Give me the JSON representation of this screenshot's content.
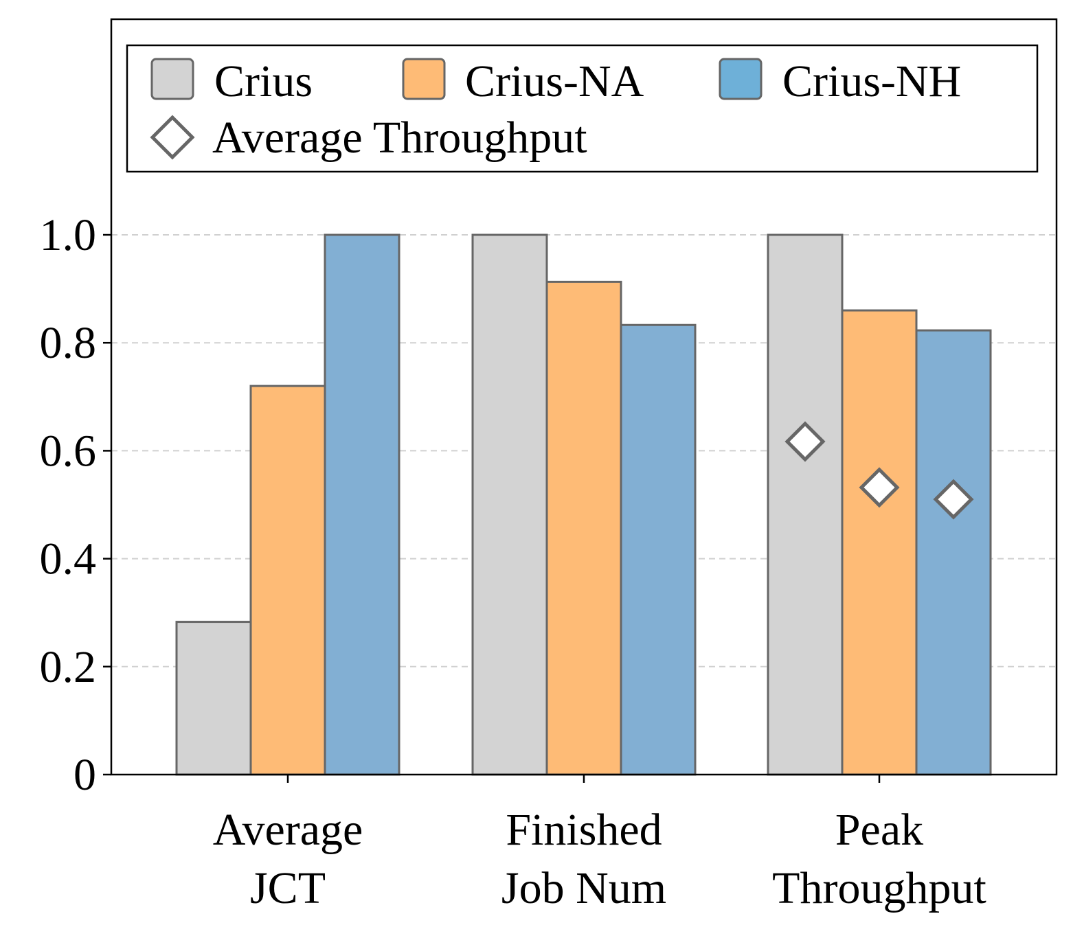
{
  "chart_data": {
    "type": "bar",
    "title": "",
    "xlabel": "",
    "ylabel": "",
    "ylim": [
      0,
      1.4
    ],
    "yticks": [
      0,
      0.2,
      0.4,
      0.6,
      0.8,
      1.0
    ],
    "ytick_labels": [
      "0",
      "0.2",
      "0.4",
      "0.6",
      "0.8",
      "1.0"
    ],
    "grid": "y dashed",
    "legend_position": "top",
    "categories": [
      [
        "Average",
        "JCT"
      ],
      [
        "Finished",
        "Job Num"
      ],
      [
        "Peak",
        "Throughput"
      ]
    ],
    "series": [
      {
        "name": "Crius",
        "color": "#d3d3d3",
        "values": [
          0.283,
          1.0,
          1.0
        ]
      },
      {
        "name": "Crius-NA",
        "color": "#febb76",
        "values": [
          0.72,
          0.913,
          0.86
        ]
      },
      {
        "name": "Crius-NH",
        "color": "#82afd3",
        "values": [
          1.0,
          0.833,
          0.823
        ]
      }
    ],
    "markers": {
      "name": "Average Throughput",
      "shape": "diamond",
      "category": "Peak Throughput",
      "values": [
        0.617,
        0.532,
        0.51
      ]
    },
    "legend_swatch_colors": [
      "#d3d3d3",
      "#febb76",
      "#6eb0d8"
    ],
    "edge_color": "#666666"
  }
}
